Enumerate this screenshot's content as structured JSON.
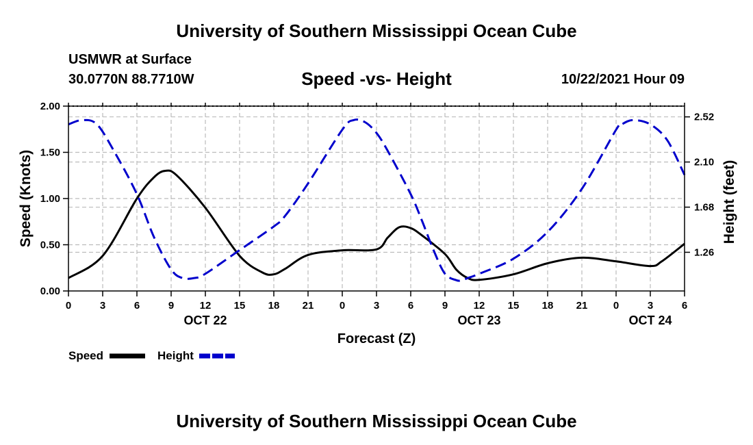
{
  "header": {
    "title": "University of Southern Mississippi Ocean Cube",
    "station": "USMWR at Surface",
    "coordinates": "30.0770N  88.7710W",
    "datetime": "10/22/2021 Hour 09"
  },
  "footer": {
    "title": "University of Southern Mississippi Ocean Cube"
  },
  "colors": {
    "speed": "#000000",
    "height": "#0000cc",
    "grid": "#bbbbbb"
  },
  "chart_data": {
    "type": "line",
    "title": "Speed -vs- Height",
    "xlabel": "Forecast (Z)",
    "ylabel": "Speed (Knots)",
    "y2label": "Height (feet)",
    "grid": true,
    "xlim": [
      0,
      54
    ],
    "ylim": [
      0,
      2.0
    ],
    "y2lim": [
      0.9,
      2.62
    ],
    "x_ticks": [
      0,
      3,
      6,
      9,
      12,
      15,
      18,
      21,
      24,
      27,
      30,
      33,
      36,
      39,
      42,
      45,
      48,
      51,
      54
    ],
    "x_tick_labels": [
      "0",
      "3",
      "6",
      "9",
      "12",
      "15",
      "18",
      "21",
      "0",
      "3",
      "6",
      "9",
      "12",
      "15",
      "18",
      "21",
      "0",
      "3",
      "6"
    ],
    "date_labels": [
      {
        "x": 12,
        "label": "OCT 22"
      },
      {
        "x": 36,
        "label": "OCT 23"
      },
      {
        "x": 51,
        "label": "OCT 24"
      }
    ],
    "y_ticks": [
      0,
      0.5,
      1.0,
      1.5,
      2.0
    ],
    "y_tick_labels": [
      "0.00",
      "0.50",
      "1.00",
      "1.50",
      "2.00"
    ],
    "y2_ticks": [
      1.26,
      1.68,
      2.1,
      2.52
    ],
    "y2_tick_labels": [
      "1.26",
      "1.68",
      "2.10",
      "2.52"
    ],
    "legend": [
      {
        "name": "Speed",
        "style": "solid"
      },
      {
        "name": "Height",
        "style": "dashed"
      }
    ],
    "series": [
      {
        "name": "Speed",
        "axis": "left",
        "x": [
          0,
          3,
          6,
          7.5,
          8.5,
          9.5,
          12,
          15,
          17,
          18,
          19,
          21,
          24,
          27,
          28,
          29,
          30,
          31,
          33,
          34,
          35,
          36,
          39,
          42,
          45,
          48,
          51,
          52,
          54
        ],
        "values": [
          0.14,
          0.38,
          1.0,
          1.23,
          1.3,
          1.25,
          0.9,
          0.38,
          0.2,
          0.18,
          0.24,
          0.39,
          0.44,
          0.45,
          0.58,
          0.69,
          0.68,
          0.6,
          0.4,
          0.23,
          0.14,
          0.12,
          0.18,
          0.3,
          0.36,
          0.32,
          0.27,
          0.32,
          0.51
        ]
      },
      {
        "name": "Height",
        "axis": "right",
        "x": [
          0,
          1.2,
          2.5,
          4,
          6,
          7.5,
          9,
          10,
          11,
          12,
          15,
          18,
          19,
          21,
          24,
          25,
          26,
          27,
          28,
          30,
          31,
          32,
          33,
          34,
          34.5,
          35,
          36,
          39,
          42,
          45,
          48,
          48.5,
          49.5,
          51,
          52.5,
          54
        ],
        "values": [
          2.45,
          2.49,
          2.45,
          2.2,
          1.8,
          1.4,
          1.1,
          1.02,
          1.02,
          1.06,
          1.28,
          1.5,
          1.6,
          1.9,
          2.4,
          2.49,
          2.47,
          2.37,
          2.2,
          1.8,
          1.55,
          1.28,
          1.06,
          1.0,
          1.0,
          1.02,
          1.06,
          1.2,
          1.45,
          1.85,
          2.4,
          2.45,
          2.49,
          2.45,
          2.3,
          1.98
        ]
      }
    ]
  }
}
